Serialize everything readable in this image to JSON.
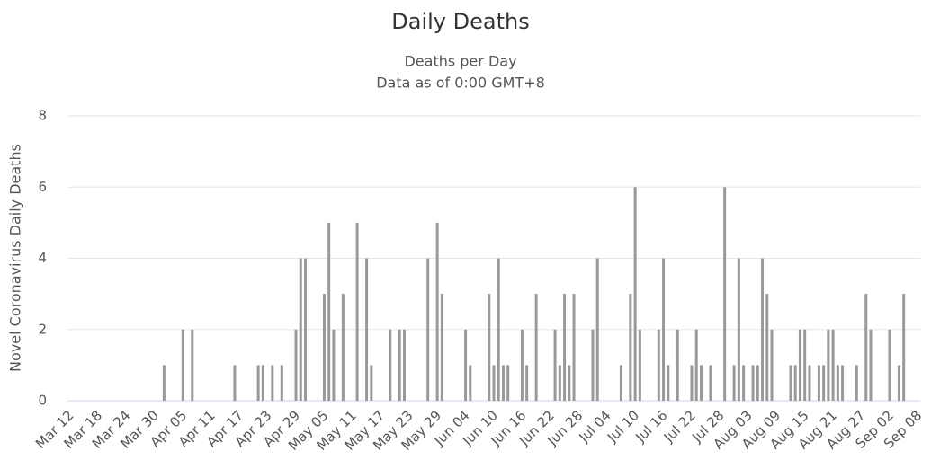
{
  "chart_data": {
    "type": "bar",
    "title": "Daily Deaths",
    "subtitle": [
      "Deaths per Day",
      "Data as of 0:00 GMT+8"
    ],
    "y_label": "Novel Coronavirus Daily Deaths",
    "color": "#999999",
    "grid": true,
    "ylim": [
      0,
      8
    ],
    "yticks": [
      0,
      2,
      4,
      6,
      8
    ],
    "categories": [
      "Mar 12",
      null,
      null,
      null,
      null,
      null,
      "Mar 18",
      null,
      null,
      null,
      null,
      null,
      "Mar 24",
      null,
      null,
      null,
      null,
      null,
      "Mar 30",
      null,
      null,
      null,
      null,
      null,
      "Apr 05",
      null,
      null,
      null,
      null,
      null,
      "Apr 11",
      null,
      null,
      null,
      null,
      null,
      "Apr 17",
      null,
      null,
      null,
      null,
      null,
      "Apr 23",
      null,
      null,
      null,
      null,
      null,
      "Apr 29",
      null,
      null,
      null,
      null,
      null,
      "May 05",
      null,
      null,
      null,
      null,
      null,
      "May 11",
      null,
      null,
      null,
      null,
      null,
      "May 17",
      null,
      null,
      null,
      null,
      null,
      "May 23",
      null,
      null,
      null,
      null,
      null,
      "May 29",
      null,
      null,
      null,
      null,
      null,
      "Jun 04",
      null,
      null,
      null,
      null,
      null,
      "Jun 10",
      null,
      null,
      null,
      null,
      null,
      "Jun 16",
      null,
      null,
      null,
      null,
      null,
      "Jun 22",
      null,
      null,
      null,
      null,
      null,
      "Jun 28",
      null,
      null,
      null,
      null,
      null,
      "Jul 04",
      null,
      null,
      null,
      null,
      null,
      "Jul 10",
      null,
      null,
      null,
      null,
      null,
      "Jul 16",
      null,
      null,
      null,
      null,
      null,
      "Jul 22",
      null,
      null,
      null,
      null,
      null,
      "Jul 28",
      null,
      null,
      null,
      null,
      null,
      "Aug 03",
      null,
      null,
      null,
      null,
      null,
      "Aug 09",
      null,
      null,
      null,
      null,
      null,
      "Aug 15",
      null,
      null,
      null,
      null,
      null,
      "Aug 21",
      null,
      null,
      null,
      null,
      null,
      "Aug 27",
      null,
      null,
      null,
      null,
      null,
      "Sep 02",
      null,
      null,
      null,
      null,
      null,
      "Sep 08"
    ],
    "values": [
      0,
      0,
      0,
      0,
      0,
      0,
      0,
      0,
      0,
      0,
      0,
      0,
      0,
      0,
      0,
      0,
      0,
      0,
      0,
      0,
      1,
      0,
      0,
      0,
      2,
      0,
      2,
      0,
      0,
      0,
      0,
      0,
      0,
      0,
      0,
      1,
      0,
      0,
      0,
      0,
      1,
      1,
      0,
      1,
      0,
      1,
      0,
      0,
      2,
      4,
      4,
      0,
      0,
      0,
      3,
      5,
      2,
      0,
      3,
      0,
      0,
      5,
      0,
      4,
      1,
      0,
      0,
      0,
      2,
      0,
      2,
      2,
      0,
      0,
      0,
      0,
      4,
      0,
      5,
      3,
      0,
      0,
      0,
      0,
      2,
      1,
      0,
      0,
      0,
      3,
      1,
      4,
      1,
      1,
      0,
      0,
      2,
      1,
      0,
      3,
      0,
      0,
      0,
      2,
      1,
      3,
      1,
      3,
      0,
      0,
      0,
      2,
      4,
      0,
      0,
      0,
      0,
      1,
      0,
      3,
      6,
      2,
      0,
      0,
      0,
      2,
      4,
      1,
      0,
      2,
      0,
      0,
      1,
      2,
      1,
      0,
      1,
      0,
      0,
      6,
      0,
      1,
      4,
      1,
      0,
      1,
      1,
      4,
      3,
      2,
      0,
      0,
      0,
      1,
      1,
      2,
      2,
      1,
      0,
      1,
      1,
      2,
      2,
      1,
      1,
      0,
      0,
      1,
      0,
      3,
      2,
      0,
      0,
      0,
      2,
      0,
      1,
      3,
      0,
      0,
      0
    ]
  }
}
